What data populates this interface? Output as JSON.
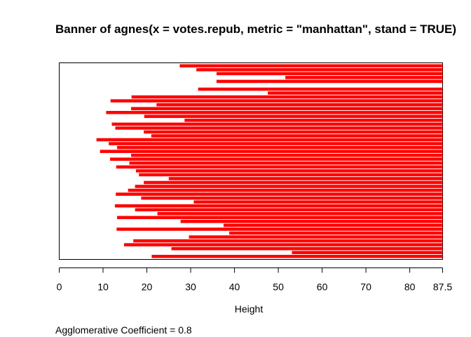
{
  "chart_data": {
    "type": "bar",
    "title": "Banner of  agnes(x = votes.repub, metric = \"manhattan\", stand = TRUE)",
    "xlabel": "Height",
    "xlim": [
      0,
      87.5
    ],
    "x_ticks": [
      0,
      10,
      20,
      30,
      40,
      50,
      60,
      70,
      80,
      87.5
    ],
    "x_tick_labels": [
      "0",
      "10",
      "20",
      "30",
      "40",
      "50",
      "60",
      "70",
      "80",
      "87.5"
    ],
    "bar_color": "#ff0000",
    "background_color": "#ffffff",
    "footer": "Agglomerative Coefficient =  0.8",
    "bar_starts": [
      27.5,
      31.3,
      35.9,
      51.6,
      35.9,
      87.5,
      31.7,
      47.6,
      16.5,
      11.7,
      22.2,
      16.4,
      10.7,
      19.4,
      28.6,
      12.0,
      12.8,
      19.3,
      21.0,
      8.5,
      11.3,
      13.2,
      9.3,
      16.4,
      11.6,
      16.0,
      13.0,
      17.5,
      18.2,
      25.0,
      19.3,
      17.3,
      15.7,
      12.9,
      18.7,
      30.7,
      12.7,
      17.3,
      22.4,
      13.2,
      27.7,
      37.5,
      13.1,
      38.8,
      29.6,
      16.9,
      14.8,
      25.6,
      53.1,
      21.1
    ]
  }
}
